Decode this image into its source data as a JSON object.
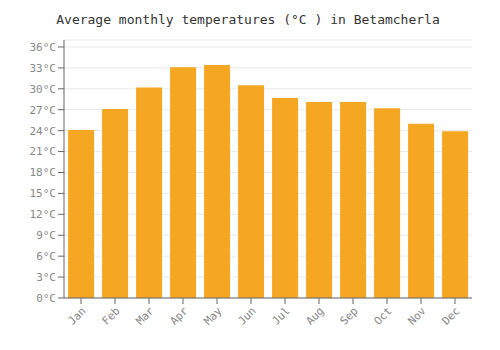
{
  "chart_data": {
    "type": "bar",
    "title": "Average monthly temperatures (°C ) in Betamcherla",
    "categories": [
      "Jan",
      "Feb",
      "Mar",
      "Apr",
      "May",
      "Jun",
      "Jul",
      "Aug",
      "Sep",
      "Oct",
      "Nov",
      "Dec"
    ],
    "values": [
      24.1,
      27.1,
      30.2,
      33.1,
      33.4,
      30.5,
      28.7,
      28.1,
      28.1,
      27.2,
      25.0,
      23.9
    ],
    "color": "#F5A623",
    "ylim": [
      0,
      37
    ],
    "yticks": [
      {
        "value": 0,
        "label": "0°C"
      },
      {
        "value": 3,
        "label": "3°C"
      },
      {
        "value": 6,
        "label": "6°C"
      },
      {
        "value": 9,
        "label": "9°C"
      },
      {
        "value": 12,
        "label": "12°C"
      },
      {
        "value": 15,
        "label": "15°C"
      },
      {
        "value": 18,
        "label": "18°C"
      },
      {
        "value": 21,
        "label": "21°C"
      },
      {
        "value": 24,
        "label": "24°C"
      },
      {
        "value": 27,
        "label": "27°C"
      },
      {
        "value": 30,
        "label": "30°C"
      },
      {
        "value": 33,
        "label": "33°C"
      },
      {
        "value": 36,
        "label": "36°C"
      }
    ],
    "grid": true
  }
}
